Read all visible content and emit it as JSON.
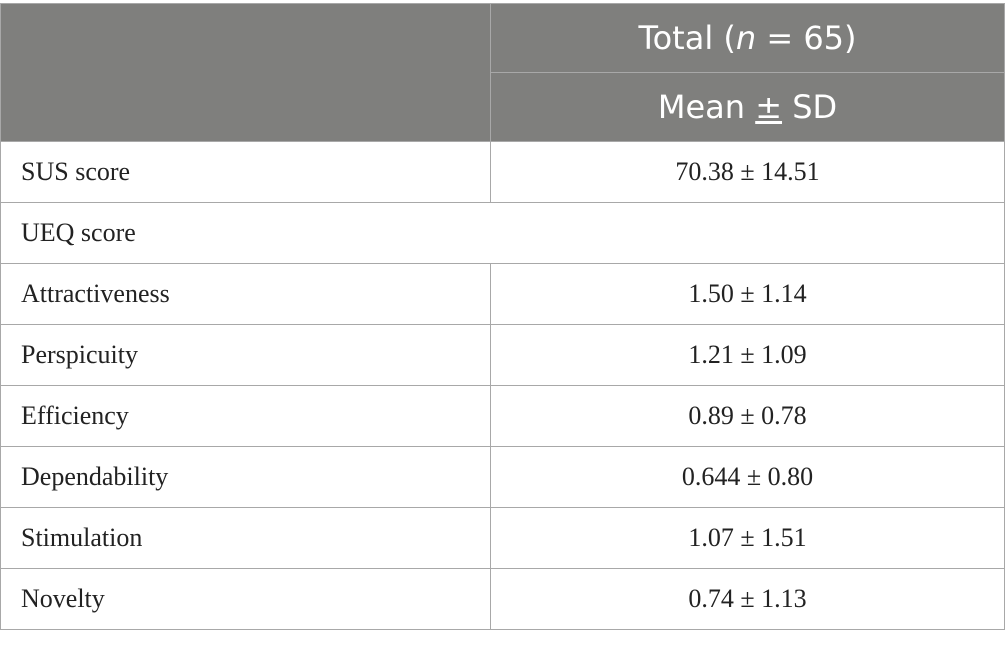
{
  "header": {
    "total_prefix": "Total (",
    "total_n": "n",
    "total_suffix": " = 65)",
    "mean_prefix": "Mean ",
    "mean_pm": "±",
    "mean_suffix": " SD"
  },
  "rows": [
    {
      "label": "SUS score",
      "value": "70.38 ± 14.51"
    },
    {
      "label": "UEQ score",
      "value": ""
    },
    {
      "label": "Attractiveness",
      "value": "1.50 ± 1.14"
    },
    {
      "label": "Perspicuity",
      "value": "1.21 ± 1.09"
    },
    {
      "label": "Efficiency",
      "value": "0.89 ± 0.78"
    },
    {
      "label": "Dependability",
      "value": "0.644 ± 0.80"
    },
    {
      "label": "Stimulation",
      "value": "1.07 ± 1.51"
    },
    {
      "label": "Novelty",
      "value": "0.74 ± 1.13"
    }
  ]
}
